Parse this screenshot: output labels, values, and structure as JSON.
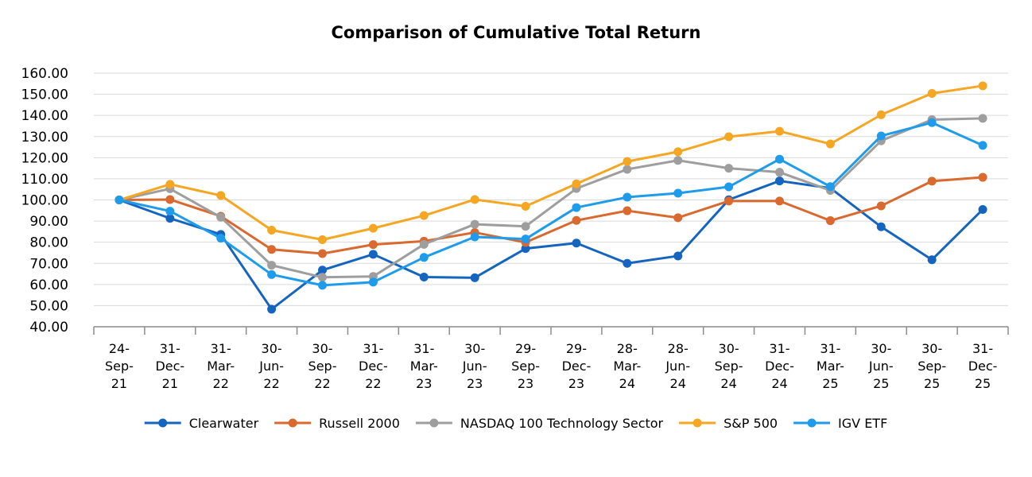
{
  "chart_data": {
    "type": "line",
    "title": "Comparison of Cumulative Total Return",
    "xlabel": "",
    "ylabel": "",
    "ylim": [
      40,
      160
    ],
    "yticks": [
      "160.00",
      "150.00",
      "140.00",
      "130.00",
      "120.00",
      "110.00",
      "100.00",
      "90.00",
      "80.00",
      "70.00",
      "60.00",
      "50.00",
      "40.00"
    ],
    "ytick_values": [
      160,
      150,
      140,
      130,
      120,
      110,
      100,
      90,
      80,
      70,
      60,
      50,
      40
    ],
    "categories": [
      [
        "24-",
        "Sep-",
        "21"
      ],
      [
        "31-",
        "Dec-",
        "21"
      ],
      [
        "31-",
        "Mar-",
        "22"
      ],
      [
        "30-",
        "Jun-",
        "22"
      ],
      [
        "30-",
        "Sep-",
        "22"
      ],
      [
        "31-",
        "Dec-",
        "22"
      ],
      [
        "31-",
        "Mar-",
        "23"
      ],
      [
        "30-",
        "Jun-",
        "23"
      ],
      [
        "29-",
        "Sep-",
        "23"
      ],
      [
        "29-",
        "Dec-",
        "23"
      ],
      [
        "28-",
        "Mar-",
        "24"
      ],
      [
        "28-",
        "Jun-",
        "24"
      ],
      [
        "30-",
        "Sep-",
        "24"
      ],
      [
        "31-",
        "Dec-",
        "24"
      ],
      [
        "31-",
        "Mar-",
        "25"
      ],
      [
        "30-",
        "Jun-",
        "25"
      ],
      [
        "30-",
        "Sep-",
        "25"
      ],
      [
        "31-",
        "Dec-",
        "25"
      ]
    ],
    "grid": true,
    "legend_position": "bottom",
    "series": [
      {
        "name": "Clearwater",
        "color": "#1565C0",
        "values": [
          100.0,
          91.3,
          83.7,
          48.3,
          66.8,
          74.3,
          63.5,
          63.2,
          77.0,
          79.6,
          70.0,
          73.5,
          100.1,
          109.0,
          105.6,
          87.3,
          71.7,
          95.5
        ]
      },
      {
        "name": "Russell 2000",
        "color": "#D9692E",
        "values": [
          100.0,
          100.2,
          92.3,
          76.6,
          74.6,
          78.9,
          80.5,
          84.6,
          79.9,
          90.3,
          94.9,
          91.6,
          99.5,
          99.5,
          90.2,
          97.2,
          108.9,
          110.7
        ]
      },
      {
        "name": "NASDAQ 100 Technology Sector",
        "color": "#9E9E9E",
        "values": [
          100.0,
          105.3,
          91.8,
          69.1,
          63.4,
          63.8,
          79.0,
          88.5,
          87.5,
          105.4,
          114.5,
          118.7,
          115.0,
          113.1,
          104.5,
          128.0,
          138.0,
          138.6
        ]
      },
      {
        "name": "S&P 500",
        "color": "#F5A623",
        "values": [
          100.0,
          107.4,
          102.1,
          85.7,
          81.2,
          86.6,
          92.6,
          100.2,
          97.0,
          107.6,
          118.2,
          122.8,
          129.9,
          132.5,
          126.5,
          140.3,
          150.4,
          154.0
        ]
      },
      {
        "name": "IGV ETF",
        "color": "#1E9BEB",
        "values": [
          100.0,
          94.7,
          81.9,
          64.7,
          59.6,
          61.1,
          72.8,
          82.5,
          81.5,
          96.4,
          101.3,
          103.2,
          106.2,
          119.3,
          106.3,
          130.3,
          136.6,
          125.8
        ]
      }
    ]
  }
}
